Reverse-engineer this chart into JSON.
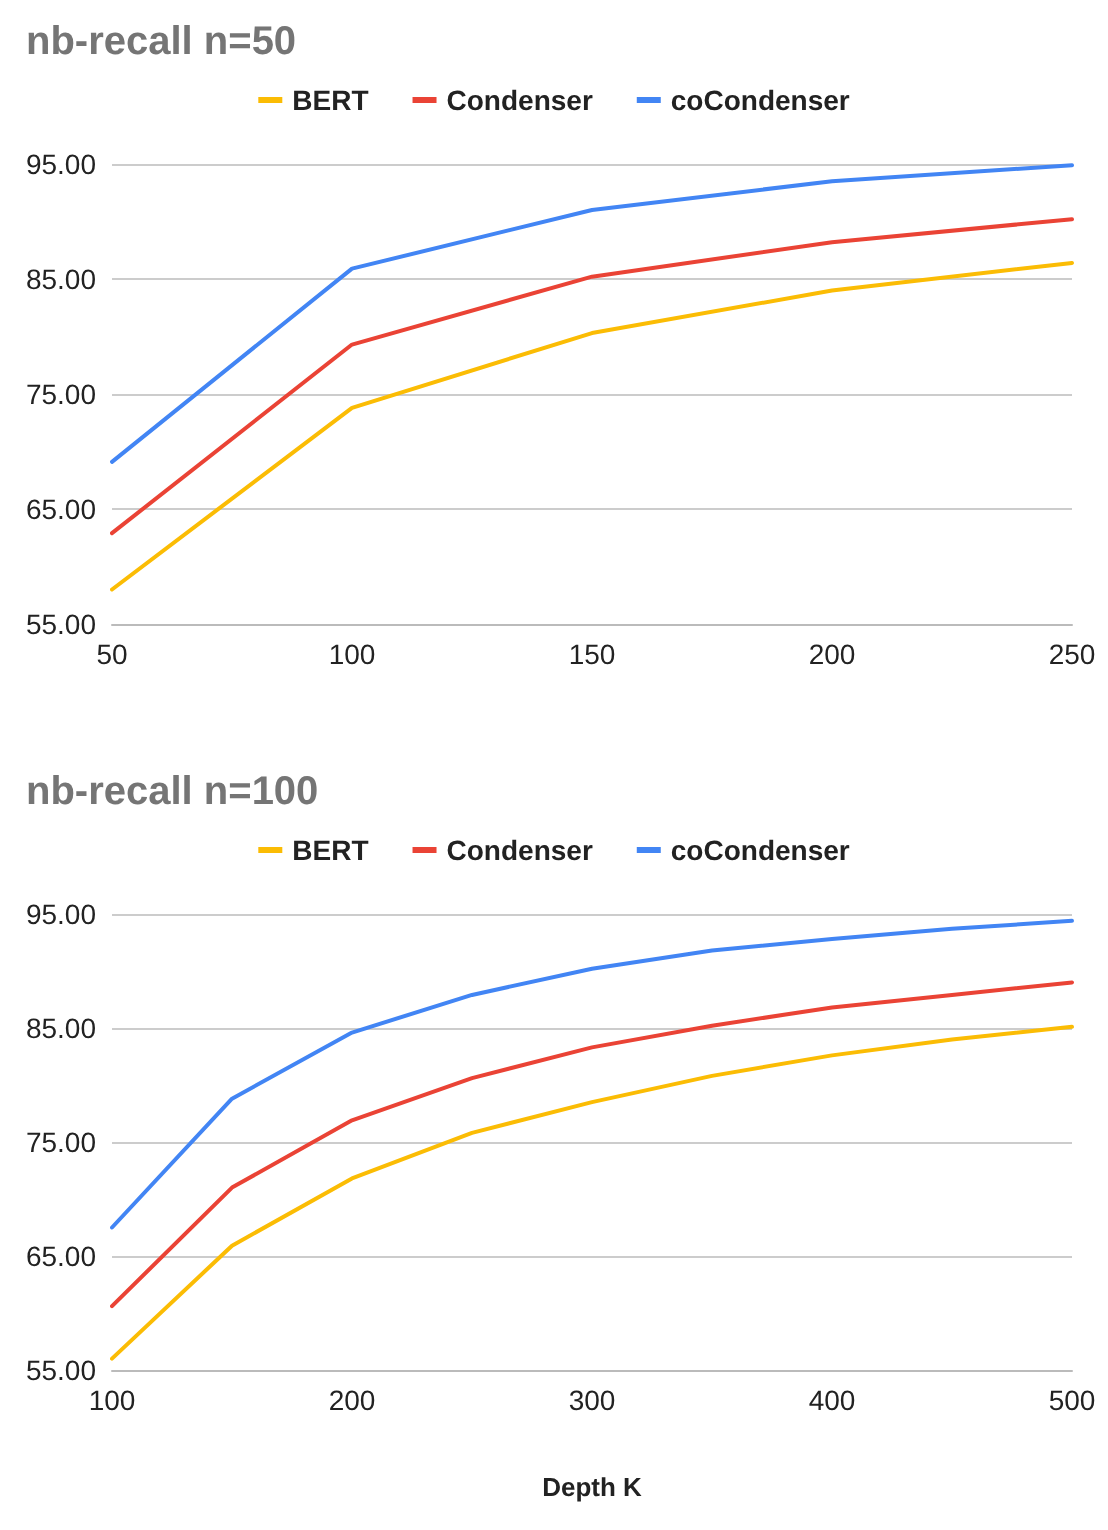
{
  "chart_data": [
    {
      "type": "line",
      "title": "nb-recall n=50",
      "x": [
        50,
        100,
        150,
        200,
        250
      ],
      "series": [
        {
          "name": "BERT",
          "color": "#fbbc04",
          "values": [
            58.0,
            73.8,
            80.3,
            84.0,
            86.4
          ]
        },
        {
          "name": "Condenser",
          "color": "#ea4335",
          "values": [
            62.9,
            79.3,
            85.2,
            88.2,
            90.2
          ]
        },
        {
          "name": "coCondenser",
          "color": "#4285f4",
          "values": [
            69.1,
            85.9,
            91.0,
            93.5,
            94.9
          ]
        }
      ],
      "xlim": [
        50,
        250
      ],
      "xticks": [
        50,
        100,
        150,
        200,
        250
      ],
      "ylim": [
        55,
        95
      ],
      "yticks": [
        {
          "value": 55,
          "label": "55.00"
        },
        {
          "value": 65,
          "label": "65.00"
        },
        {
          "value": 75,
          "label": "75.00"
        },
        {
          "value": 85,
          "label": "85.00"
        },
        {
          "value": 95,
          "label": "95.00"
        }
      ],
      "grid": "y",
      "legend": "top",
      "marker": "none",
      "line_style": "solid"
    },
    {
      "type": "line",
      "title": "nb-recall n=100",
      "xlabel": "Depth K",
      "x": [
        100,
        150,
        200,
        250,
        300,
        350,
        400,
        450,
        500
      ],
      "series": [
        {
          "name": "BERT",
          "color": "#fbbc04",
          "values": [
            56.0,
            65.9,
            71.8,
            75.8,
            78.5,
            80.8,
            82.6,
            84.0,
            85.1
          ]
        },
        {
          "name": "Condenser",
          "color": "#ea4335",
          "values": [
            60.6,
            71.0,
            76.9,
            80.6,
            83.3,
            85.2,
            86.8,
            87.9,
            89.0
          ]
        },
        {
          "name": "coCondenser",
          "color": "#4285f4",
          "values": [
            67.5,
            78.8,
            84.6,
            87.9,
            90.2,
            91.8,
            92.8,
            93.7,
            94.4
          ]
        }
      ],
      "xlim": [
        100,
        500
      ],
      "xticks": [
        100,
        200,
        300,
        400,
        500
      ],
      "ylim": [
        55,
        95
      ],
      "yticks": [
        {
          "value": 55,
          "label": "55.00"
        },
        {
          "value": 65,
          "label": "65.00"
        },
        {
          "value": 75,
          "label": "75.00"
        },
        {
          "value": 85,
          "label": "85.00"
        },
        {
          "value": 95,
          "label": "95.00"
        }
      ],
      "grid": "y",
      "legend": "top",
      "marker": "none",
      "line_style": "solid"
    }
  ]
}
